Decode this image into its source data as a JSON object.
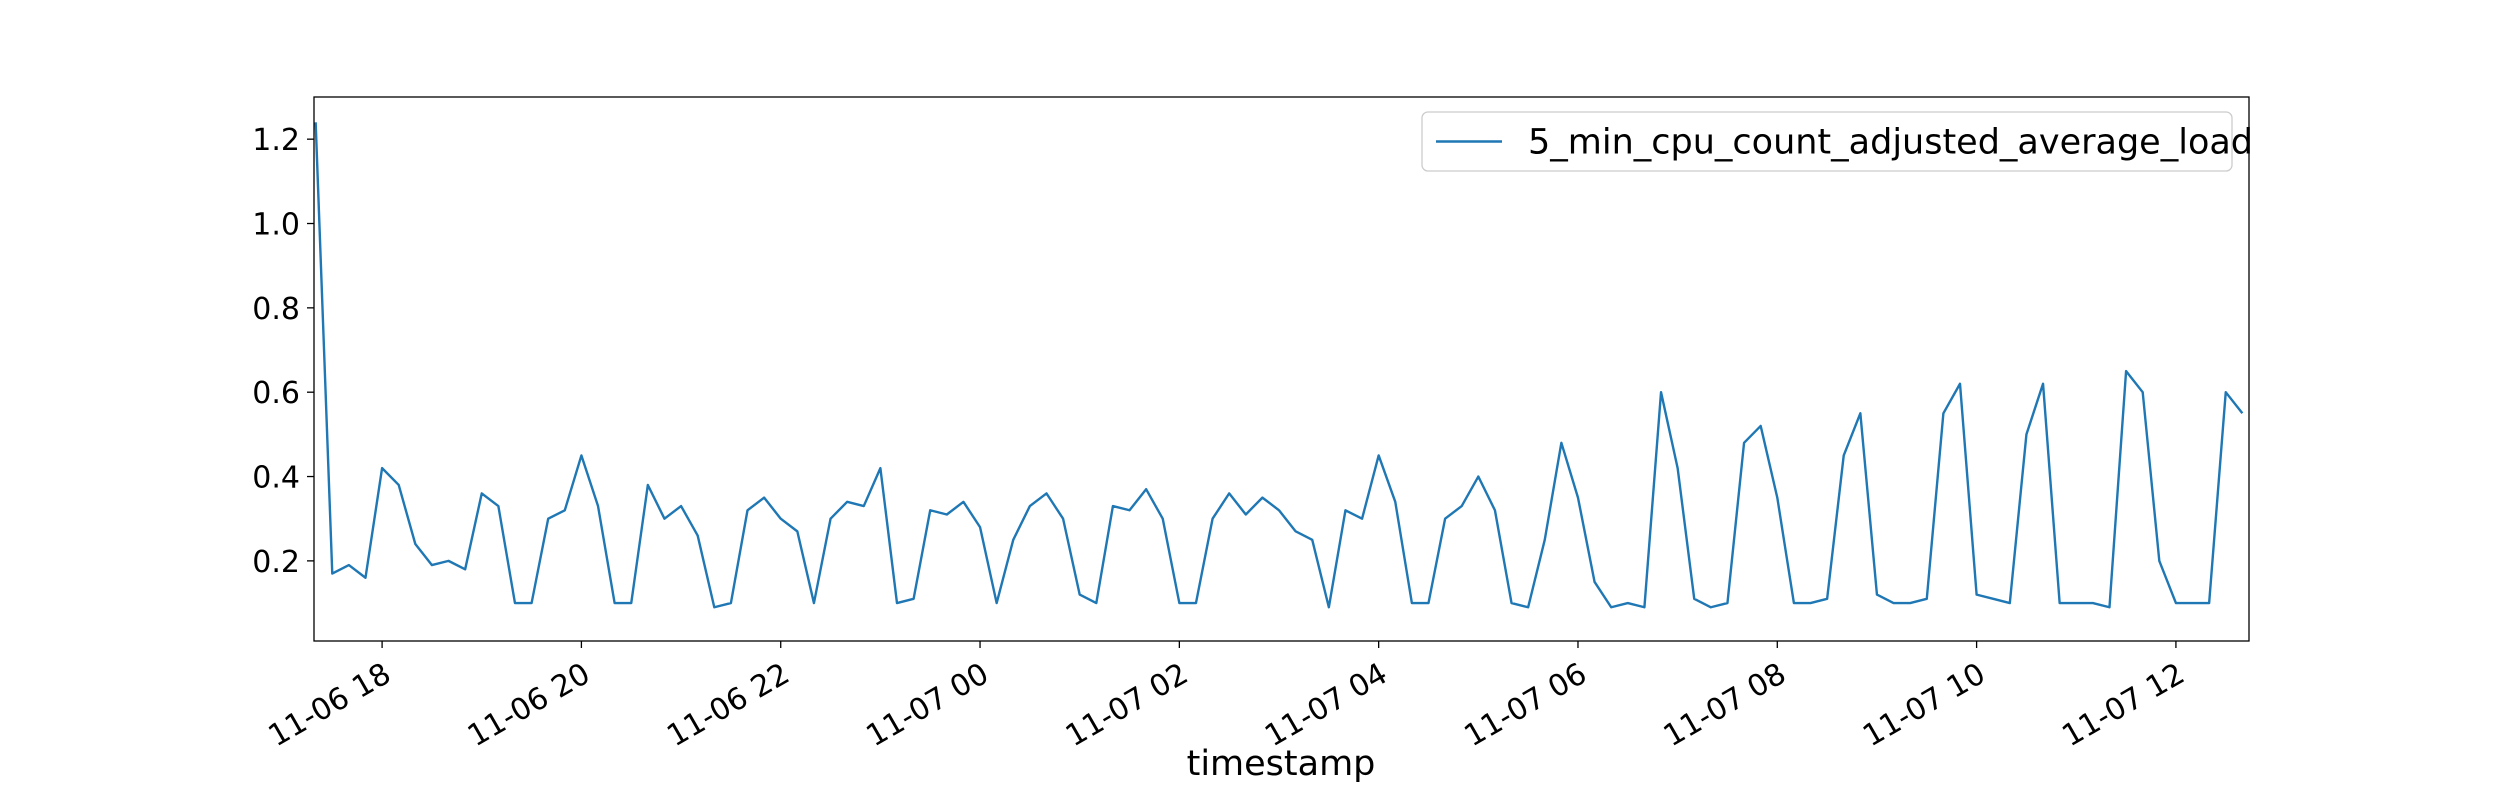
{
  "chart_data": {
    "type": "line",
    "x_label": "timestamp",
    "x": [
      "11-06 17:20",
      "11-06 17:30",
      "11-06 17:40",
      "11-06 17:50",
      "11-06 18:00",
      "11-06 18:10",
      "11-06 18:20",
      "11-06 18:30",
      "11-06 18:40",
      "11-06 18:50",
      "11-06 19:00",
      "11-06 19:10",
      "11-06 19:20",
      "11-06 19:30",
      "11-06 19:40",
      "11-06 19:50",
      "11-06 20:00",
      "11-06 20:10",
      "11-06 20:20",
      "11-06 20:30",
      "11-06 20:40",
      "11-06 20:50",
      "11-06 21:00",
      "11-06 21:10",
      "11-06 21:20",
      "11-06 21:30",
      "11-06 21:40",
      "11-06 21:50",
      "11-06 22:00",
      "11-06 22:10",
      "11-06 22:20",
      "11-06 22:30",
      "11-06 22:40",
      "11-06 22:50",
      "11-06 23:00",
      "11-06 23:10",
      "11-06 23:20",
      "11-06 23:30",
      "11-06 23:40",
      "11-06 23:50",
      "11-07 00:00",
      "11-07 00:10",
      "11-07 00:20",
      "11-07 00:30",
      "11-07 00:40",
      "11-07 00:50",
      "11-07 01:00",
      "11-07 01:10",
      "11-07 01:20",
      "11-07 01:30",
      "11-07 01:40",
      "11-07 01:50",
      "11-07 02:00",
      "11-07 02:10",
      "11-07 02:20",
      "11-07 02:30",
      "11-07 02:40",
      "11-07 02:50",
      "11-07 03:00",
      "11-07 03:10",
      "11-07 03:20",
      "11-07 03:30",
      "11-07 03:40",
      "11-07 03:50",
      "11-07 04:00",
      "11-07 04:10",
      "11-07 04:20",
      "11-07 04:30",
      "11-07 04:40",
      "11-07 04:50",
      "11-07 05:00",
      "11-07 05:10",
      "11-07 05:20",
      "11-07 05:30",
      "11-07 05:40",
      "11-07 05:50",
      "11-07 06:00",
      "11-07 06:10",
      "11-07 06:20",
      "11-07 06:30",
      "11-07 06:40",
      "11-07 06:50",
      "11-07 07:00",
      "11-07 07:10",
      "11-07 07:20",
      "11-07 07:30",
      "11-07 07:40",
      "11-07 07:50",
      "11-07 08:00",
      "11-07 08:10",
      "11-07 08:20",
      "11-07 08:30",
      "11-07 08:40",
      "11-07 08:50",
      "11-07 09:00",
      "11-07 09:10",
      "11-07 09:20",
      "11-07 09:30",
      "11-07 09:40",
      "11-07 09:50",
      "11-07 10:00",
      "11-07 10:10",
      "11-07 10:20",
      "11-07 10:30",
      "11-07 10:40",
      "11-07 10:50",
      "11-07 11:00",
      "11-07 11:10",
      "11-07 11:20",
      "11-07 11:30",
      "11-07 11:40",
      "11-07 11:50",
      "11-07 12:00",
      "11-07 12:10",
      "11-07 12:20",
      "11-07 12:30",
      "11-07 12:40"
    ],
    "series": [
      {
        "name": "5_min_cpu_count_adjusted_average_load",
        "color": "#1f77b4",
        "values": [
          1.24,
          0.17,
          0.19,
          0.16,
          0.42,
          0.38,
          0.24,
          0.19,
          0.2,
          0.18,
          0.36,
          0.33,
          0.1,
          0.1,
          0.3,
          0.32,
          0.45,
          0.33,
          0.1,
          0.1,
          0.38,
          0.3,
          0.33,
          0.26,
          0.09,
          0.1,
          0.32,
          0.35,
          0.3,
          0.27,
          0.1,
          0.3,
          0.34,
          0.33,
          0.42,
          0.1,
          0.11,
          0.32,
          0.31,
          0.34,
          0.28,
          0.1,
          0.25,
          0.33,
          0.36,
          0.3,
          0.12,
          0.1,
          0.33,
          0.32,
          0.37,
          0.3,
          0.1,
          0.1,
          0.3,
          0.36,
          0.31,
          0.35,
          0.32,
          0.27,
          0.25,
          0.09,
          0.32,
          0.3,
          0.45,
          0.34,
          0.1,
          0.1,
          0.3,
          0.33,
          0.4,
          0.32,
          0.1,
          0.09,
          0.25,
          0.48,
          0.35,
          0.15,
          0.09,
          0.1,
          0.09,
          0.6,
          0.42,
          0.11,
          0.09,
          0.1,
          0.48,
          0.52,
          0.35,
          0.1,
          0.1,
          0.11,
          0.45,
          0.55,
          0.12,
          0.1,
          0.1,
          0.11,
          0.55,
          0.62,
          0.12,
          0.11,
          0.1,
          0.5,
          0.62,
          0.1,
          0.1,
          0.1,
          0.09,
          0.65,
          0.6,
          0.2,
          0.1,
          0.1,
          0.1,
          0.6,
          0.55
        ]
      }
    ],
    "xlim": [
      "11-06 17:19",
      "11-07 12:44"
    ],
    "xticks": [
      {
        "value": "11-06 18:00",
        "label": "11-06 18"
      },
      {
        "value": "11-06 20:00",
        "label": "11-06 20"
      },
      {
        "value": "11-06 22:00",
        "label": "11-06 22"
      },
      {
        "value": "11-07 00:00",
        "label": "11-07 00"
      },
      {
        "value": "11-07 02:00",
        "label": "11-07 02"
      },
      {
        "value": "11-07 04:00",
        "label": "11-07 04"
      },
      {
        "value": "11-07 06:00",
        "label": "11-07 06"
      },
      {
        "value": "11-07 08:00",
        "label": "11-07 08"
      },
      {
        "value": "11-07 10:00",
        "label": "11-07 10"
      },
      {
        "value": "11-07 12:00",
        "label": "11-07 12"
      }
    ],
    "ylim": [
      0.01,
      1.3
    ],
    "yticks": [
      0.2,
      0.4,
      0.6,
      0.8,
      {
        "value": 1.0,
        "label": "1.0"
      },
      1.2
    ],
    "legend": "upper right"
  }
}
